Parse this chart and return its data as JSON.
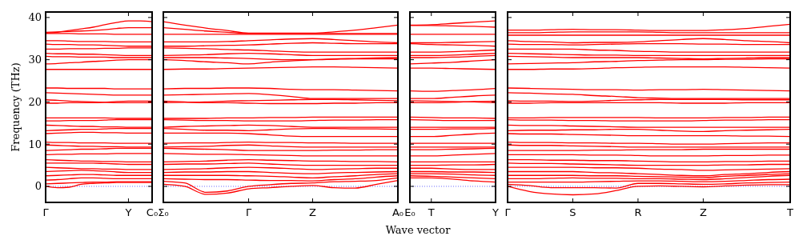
{
  "chart_data": [
    {
      "type": "line",
      "ylabel": "Frequency (THz)",
      "color": "#ff0000",
      "line_style": "solid",
      "marker": "none",
      "ylim": [
        -3.8,
        41.3
      ],
      "yticks": [
        0,
        10,
        20,
        30,
        40
      ],
      "categories": [
        "Γ",
        null,
        null,
        null,
        null,
        null,
        null,
        "Y",
        null,
        "C₀"
      ],
      "ref_lines": [
        {
          "axis": "y",
          "value": 0,
          "color": "#0000ff",
          "line_style": "dotted"
        }
      ],
      "series": [
        {
          "values": [
            36.3,
            36.5,
            36.9,
            37.3,
            37.7,
            38.3,
            38.8,
            39.2,
            39.2,
            39.0
          ]
        },
        {
          "values": [
            36.5,
            36.6,
            36.7,
            36.8,
            36.9,
            37.1,
            37.4,
            37.6,
            37.6,
            37.6
          ]
        },
        {
          "values": [
            36.2,
            36.2,
            36.2,
            36.1,
            36.1,
            36.1,
            36.0,
            36.0,
            36.0,
            36.0
          ]
        },
        {
          "values": [
            34.5,
            34.5,
            34.4,
            34.3,
            34.3,
            34.3,
            34.2,
            34.2,
            34.2,
            34.2
          ]
        },
        {
          "values": [
            33.7,
            33.6,
            33.6,
            33.5,
            33.5,
            33.4,
            33.3,
            33.2,
            33.2,
            33.2
          ]
        },
        {
          "values": [
            32.5,
            32.5,
            32.6,
            32.6,
            32.6,
            32.7,
            32.7,
            32.8,
            32.8,
            32.8
          ]
        },
        {
          "values": [
            31.5,
            31.4,
            31.4,
            31.3,
            31.3,
            31.2,
            31.1,
            31.0,
            31.0,
            31.0
          ]
        },
        {
          "values": [
            30.8,
            30.7,
            30.7,
            30.6,
            30.6,
            30.6,
            30.5,
            30.5,
            30.5,
            30.5
          ]
        },
        {
          "values": [
            29.0,
            29.1,
            29.3,
            29.4,
            29.6,
            29.7,
            29.9,
            30.0,
            30.0,
            30.0
          ]
        },
        {
          "values": [
            27.7,
            27.7,
            27.7,
            27.7,
            27.7,
            27.7,
            27.7,
            27.7,
            27.7,
            27.7
          ]
        },
        {
          "values": [
            23.3,
            23.3,
            23.2,
            23.2,
            23.2,
            23.2,
            23.1,
            23.1,
            23.1,
            23.1
          ]
        },
        {
          "values": [
            22.2,
            22.1,
            22.0,
            21.9,
            21.8,
            21.7,
            21.6,
            21.6,
            21.6,
            21.6
          ]
        },
        {
          "values": [
            20.5,
            20.4,
            20.2,
            20.1,
            20.0,
            19.9,
            19.8,
            19.8,
            19.8,
            19.8
          ]
        },
        {
          "values": [
            19.7,
            19.7,
            19.8,
            19.8,
            19.8,
            19.9,
            20.1,
            20.2,
            20.2,
            20.2
          ]
        },
        {
          "values": [
            16.2,
            16.2,
            16.2,
            16.2,
            16.2,
            16.2,
            16.1,
            16.1,
            16.1,
            16.1
          ]
        },
        {
          "values": [
            15.5,
            15.5,
            15.6,
            15.6,
            15.6,
            15.7,
            15.8,
            15.8,
            15.8,
            15.8
          ]
        },
        {
          "values": [
            14.5,
            14.4,
            14.3,
            14.2,
            14.2,
            14.1,
            14.1,
            14.0,
            14.0,
            14.0
          ]
        },
        {
          "values": [
            13.2,
            13.3,
            13.4,
            13.5,
            13.5,
            13.6,
            13.7,
            13.7,
            13.7,
            13.7
          ]
        },
        {
          "values": [
            12.5,
            12.6,
            12.7,
            12.8,
            12.8,
            12.7,
            12.7,
            12.6,
            12.6,
            12.6
          ]
        },
        {
          "values": [
            10.5,
            10.4,
            10.4,
            10.3,
            10.3,
            10.3,
            10.2,
            10.2,
            10.2,
            10.2
          ]
        },
        {
          "values": [
            9.8,
            9.7,
            9.6,
            9.5,
            9.5,
            9.4,
            9.4,
            9.3,
            9.3,
            9.3
          ]
        },
        {
          "values": [
            8.5,
            8.6,
            8.7,
            8.8,
            8.8,
            8.9,
            9.0,
            9.0,
            9.0,
            9.0
          ]
        },
        {
          "values": [
            7.5,
            7.6,
            7.6,
            7.7,
            7.7,
            7.7,
            7.8,
            7.8,
            7.8,
            7.8
          ]
        },
        {
          "values": [
            6.3,
            6.2,
            6.1,
            6.0,
            6.0,
            5.9,
            5.9,
            5.8,
            5.8,
            5.8
          ]
        },
        {
          "values": [
            5.5,
            5.5,
            5.5,
            5.5,
            5.5,
            5.4,
            5.3,
            5.2,
            5.2,
            5.2
          ]
        },
        {
          "values": [
            4.5,
            4.4,
            4.3,
            4.2,
            4.2,
            4.1,
            4.1,
            4.0,
            4.0,
            4.0
          ]
        },
        {
          "values": [
            3.5,
            3.6,
            3.7,
            3.8,
            3.7,
            3.6,
            3.4,
            3.3,
            3.3,
            3.3
          ]
        },
        {
          "values": [
            2.5,
            2.6,
            2.7,
            2.8,
            2.8,
            2.7,
            2.6,
            2.6,
            2.6,
            2.6
          ]
        },
        {
          "values": [
            1.5,
            1.6,
            1.8,
            2.0,
            2.0,
            1.9,
            1.8,
            1.8,
            1.8,
            1.8
          ]
        },
        {
          "values": [
            0.6,
            0.7,
            0.8,
            0.9,
            1.0,
            1.0,
            1.1,
            1.1,
            1.1,
            1.1
          ]
        },
        {
          "values": [
            0,
            -0.3,
            -0.2,
            0.5,
            0.7,
            0.8,
            0.9,
            0.9,
            0.9,
            0.9
          ]
        }
      ]
    },
    {
      "type": "line",
      "color": "#ff0000",
      "line_style": "solid",
      "marker": "none",
      "tick_labels": "x",
      "ylim": [
        -3.8,
        41.3
      ],
      "yticks": [
        0,
        10,
        20,
        30,
        40
      ],
      "categories": [
        "Σ₀",
        null,
        null,
        null,
        "Γ",
        null,
        null,
        "Z",
        null,
        null,
        null,
        "A₀"
      ],
      "ref_lines": [
        {
          "axis": "y",
          "value": 0,
          "color": "#0000ff",
          "line_style": "dotted"
        }
      ],
      "series": [
        {
          "values": [
            39.0,
            38.2,
            37.5,
            36.9,
            36.3,
            36.3,
            36.3,
            36.3,
            36.6,
            37.0,
            37.6,
            38.2
          ]
        },
        {
          "values": [
            37.6,
            37.2,
            36.8,
            36.5,
            36.2,
            36.2,
            36.2,
            36.2,
            36.2,
            36.2,
            36.2,
            36.2
          ]
        },
        {
          "values": [
            36.0,
            36.0,
            36.0,
            36.0,
            36.0,
            36.0,
            36.0,
            36.0,
            36.0,
            36.0,
            36.0,
            36.0
          ]
        },
        {
          "values": [
            34.2,
            34.2,
            34.2,
            34.3,
            34.5,
            34.7,
            34.9,
            35.0,
            34.8,
            34.5,
            34.2,
            34.0
          ]
        },
        {
          "values": [
            33.2,
            33.2,
            33.3,
            33.4,
            33.5,
            33.7,
            33.9,
            34.0,
            33.9,
            33.8,
            33.8,
            33.8
          ]
        },
        {
          "values": [
            32.8,
            32.7,
            32.6,
            32.4,
            32.3,
            32.1,
            31.9,
            31.8,
            31.8,
            31.8,
            31.8,
            31.8
          ]
        },
        {
          "values": [
            31.0,
            31.1,
            31.2,
            31.4,
            31.5,
            31.4,
            31.2,
            31.0,
            31.0,
            31.0,
            31.0,
            31.0
          ]
        },
        {
          "values": [
            30.5,
            30.5,
            30.5,
            30.4,
            30.3,
            30.1,
            30.0,
            30.0,
            30.1,
            30.2,
            30.2,
            30.2
          ]
        },
        {
          "values": [
            30.0,
            29.8,
            29.5,
            29.3,
            29.0,
            29.4,
            29.7,
            30.0,
            30.2,
            30.3,
            30.4,
            30.5
          ]
        },
        {
          "values": [
            27.7,
            27.8,
            27.8,
            27.9,
            28.0,
            28.1,
            28.2,
            28.3,
            28.3,
            28.2,
            28.1,
            28.0
          ]
        },
        {
          "values": [
            23.1,
            23.2,
            23.2,
            23.3,
            23.3,
            23.2,
            23.0,
            22.9,
            22.9,
            22.8,
            22.7,
            22.6
          ]
        },
        {
          "values": [
            21.6,
            21.7,
            21.8,
            21.9,
            22.0,
            21.7,
            21.3,
            20.8,
            20.8,
            20.8,
            20.8,
            20.8
          ]
        },
        {
          "values": [
            19.8,
            19.9,
            20.0,
            20.2,
            20.3,
            20.4,
            20.5,
            20.6,
            20.6,
            20.5,
            20.4,
            20.3
          ]
        },
        {
          "values": [
            20.2,
            20.0,
            19.8,
            19.8,
            19.7,
            19.6,
            19.6,
            19.6,
            19.7,
            19.7,
            19.8,
            19.8
          ]
        },
        {
          "values": [
            16.1,
            16.1,
            16.1,
            16.2,
            16.2,
            16.3,
            16.3,
            16.4,
            16.4,
            16.4,
            16.4,
            16.4
          ]
        },
        {
          "values": [
            15.8,
            15.7,
            15.6,
            15.6,
            15.5,
            15.5,
            15.5,
            15.6,
            15.7,
            15.7,
            15.8,
            15.8
          ]
        },
        {
          "values": [
            14.0,
            14.2,
            14.3,
            14.4,
            14.5,
            14.4,
            14.2,
            14.0,
            14.0,
            14.0,
            14.0,
            14.0
          ]
        },
        {
          "values": [
            13.7,
            13.5,
            13.3,
            13.3,
            13.2,
            13.4,
            13.6,
            13.7,
            13.7,
            13.6,
            13.6,
            13.5
          ]
        },
        {
          "values": [
            12.6,
            12.6,
            12.6,
            12.6,
            12.5,
            12.2,
            11.9,
            11.8,
            11.8,
            11.8,
            11.8,
            11.8
          ]
        },
        {
          "values": [
            10.2,
            10.3,
            10.3,
            10.4,
            10.5,
            10.4,
            10.4,
            10.3,
            10.3,
            10.2,
            10.2,
            10.2
          ]
        },
        {
          "values": [
            9.3,
            9.4,
            9.5,
            9.7,
            9.8,
            9.6,
            9.4,
            9.3,
            9.3,
            9.3,
            9.3,
            9.3
          ]
        },
        {
          "values": [
            9.0,
            8.9,
            8.8,
            8.7,
            8.5,
            8.5,
            8.5,
            8.5,
            8.6,
            8.6,
            8.7,
            8.7
          ]
        },
        {
          "values": [
            7.8,
            7.7,
            7.6,
            7.6,
            7.5,
            7.4,
            7.3,
            7.2,
            7.2,
            7.2,
            7.2,
            7.2
          ]
        },
        {
          "values": [
            5.8,
            5.9,
            6.0,
            6.2,
            6.3,
            6.2,
            6.1,
            6.0,
            6.0,
            5.9,
            5.9,
            5.8
          ]
        },
        {
          "values": [
            5.2,
            5.3,
            5.3,
            5.4,
            5.5,
            5.3,
            5.1,
            5.0,
            5.0,
            5.0,
            5.0,
            5.0
          ]
        },
        {
          "values": [
            4.0,
            4.1,
            4.2,
            4.4,
            4.5,
            4.4,
            4.2,
            4.0,
            4.1,
            4.2,
            4.3,
            4.3
          ]
        },
        {
          "values": [
            3.3,
            3.4,
            3.4,
            3.5,
            3.5,
            3.3,
            3.1,
            3.0,
            3.2,
            3.3,
            3.4,
            3.5
          ]
        },
        {
          "values": [
            2.6,
            2.6,
            2.6,
            2.6,
            2.5,
            2.4,
            2.2,
            2.0,
            2.3,
            2.5,
            2.8,
            3.0
          ]
        },
        {
          "values": [
            1.8,
            1.7,
            1.6,
            1.6,
            1.5,
            1.4,
            1.4,
            1.3,
            1.6,
            1.8,
            2.2,
            2.5
          ]
        },
        {
          "values": [
            1.2,
            0.8,
            -1.4,
            -1.1,
            0,
            0.4,
            0.7,
            0.8,
            1.1,
            1.2,
            1.4,
            2.0
          ]
        },
        {
          "values": [
            0.5,
            0.0,
            -1.9,
            -1.6,
            -0.6,
            -0.3,
            0,
            0.2,
            -0.3,
            -0.4,
            0.5,
            1.4
          ]
        }
      ]
    },
    {
      "type": "line",
      "xlabel": "Wave vector",
      "color": "#ff0000",
      "line_style": "solid",
      "marker": "none",
      "tick_labels": "x",
      "ylim": [
        -3.8,
        41.3
      ],
      "yticks": [
        0,
        10,
        20,
        30,
        40
      ],
      "categories": [
        "E₀",
        "T",
        null,
        null,
        "Y"
      ],
      "ref_lines": [
        {
          "axis": "y",
          "value": 0,
          "color": "#0000ff",
          "line_style": "dotted"
        }
      ],
      "series": [
        {
          "values": [
            38.2,
            38.3,
            38.6,
            38.9,
            39.2
          ]
        },
        {
          "values": [
            38.1,
            38.1,
            38.0,
            37.9,
            37.7
          ]
        },
        {
          "values": [
            36.0,
            36.0,
            36.0,
            36.0,
            36.0
          ]
        },
        {
          "values": [
            34.0,
            34.0,
            34.1,
            34.2,
            34.3
          ]
        },
        {
          "values": [
            33.8,
            33.6,
            33.5,
            33.4,
            33.2
          ]
        },
        {
          "values": [
            31.8,
            31.8,
            31.9,
            32.1,
            32.3
          ]
        },
        {
          "values": [
            31.0,
            31.0,
            31.1,
            31.3,
            31.5
          ]
        },
        {
          "values": [
            30.5,
            30.5,
            30.6,
            30.8,
            31.0
          ]
        },
        {
          "values": [
            29.0,
            29.2,
            29.4,
            29.7,
            30.0
          ]
        },
        {
          "values": [
            28.0,
            28.0,
            27.9,
            27.8,
            27.7
          ]
        },
        {
          "values": [
            22.6,
            22.5,
            22.7,
            22.9,
            23.2
          ]
        },
        {
          "values": [
            20.8,
            20.8,
            21.1,
            21.4,
            21.6
          ]
        },
        {
          "values": [
            20.3,
            20.2,
            20.1,
            20.0,
            19.8
          ]
        },
        {
          "values": [
            19.8,
            19.8,
            19.9,
            20.1,
            20.2
          ]
        },
        {
          "values": [
            16.4,
            16.3,
            16.2,
            16.2,
            16.1
          ]
        },
        {
          "values": [
            15.8,
            15.7,
            15.6,
            15.6,
            15.6
          ]
        },
        {
          "values": [
            14.0,
            14.0,
            14.0,
            14.0,
            14.0
          ]
        },
        {
          "values": [
            13.5,
            13.5,
            13.6,
            13.6,
            13.7
          ]
        },
        {
          "values": [
            11.8,
            11.8,
            12.1,
            12.4,
            12.6
          ]
        },
        {
          "values": [
            10.2,
            10.2,
            10.2,
            10.2,
            10.2
          ]
        },
        {
          "values": [
            9.3,
            9.3,
            9.3,
            9.3,
            9.3
          ]
        },
        {
          "values": [
            8.7,
            8.7,
            8.8,
            8.9,
            9.0
          ]
        },
        {
          "values": [
            7.2,
            7.2,
            7.4,
            7.6,
            7.8
          ]
        },
        {
          "values": [
            5.8,
            5.8,
            5.8,
            5.8,
            5.8
          ]
        },
        {
          "values": [
            5.0,
            5.0,
            5.1,
            5.1,
            5.2
          ]
        },
        {
          "values": [
            4.3,
            4.3,
            4.1,
            4.0,
            4.0
          ]
        },
        {
          "values": [
            3.5,
            3.5,
            3.4,
            3.4,
            3.3
          ]
        },
        {
          "values": [
            3.0,
            3.0,
            2.9,
            2.7,
            2.6
          ]
        },
        {
          "values": [
            2.5,
            2.4,
            2.2,
            2.0,
            1.8
          ]
        },
        {
          "values": [
            2.0,
            2.0,
            1.7,
            1.3,
            1.0
          ]
        }
      ]
    },
    {
      "type": "line",
      "color": "#ff0000",
      "line_style": "solid",
      "marker": "none",
      "tick_labels": "x",
      "ylim": [
        -3.8,
        41.3
      ],
      "yticks": [
        0,
        10,
        20,
        30,
        40
      ],
      "categories": [
        "Γ",
        null,
        null,
        "S",
        null,
        null,
        "R",
        null,
        null,
        "Z",
        null,
        null,
        null,
        "T"
      ],
      "ref_lines": [
        {
          "axis": "y",
          "value": 0,
          "color": "#0000ff",
          "line_style": "dotted"
        }
      ],
      "series": [
        {
          "values": [
            37.0,
            37.0,
            37.1,
            37.2,
            37.1,
            37.1,
            37.0,
            36.9,
            36.9,
            36.9,
            37.1,
            37.4,
            37.9,
            38.4
          ]
        },
        {
          "values": [
            36.4,
            36.4,
            36.5,
            36.6,
            36.6,
            36.6,
            36.6,
            36.5,
            36.4,
            36.4,
            36.4,
            36.4,
            36.4,
            36.4
          ]
        },
        {
          "values": [
            35.8,
            35.8,
            35.8,
            35.8,
            35.8,
            35.8,
            35.8,
            35.8,
            35.8,
            35.8,
            35.8,
            35.8,
            35.8,
            35.8
          ]
        },
        {
          "values": [
            34.5,
            34.3,
            34.2,
            34.0,
            34.1,
            34.1,
            34.2,
            34.5,
            34.8,
            35.0,
            34.8,
            34.5,
            34.3,
            34.0
          ]
        },
        {
          "values": [
            33.7,
            33.6,
            33.6,
            33.5,
            33.6,
            33.7,
            33.8,
            33.8,
            33.8,
            33.7,
            33.7,
            33.6,
            33.6,
            33.6
          ]
        },
        {
          "values": [
            32.5,
            32.5,
            32.5,
            32.5,
            32.3,
            32.2,
            32.0,
            31.9,
            31.8,
            31.8,
            31.8,
            31.8,
            31.8,
            31.8
          ]
        },
        {
          "values": [
            31.5,
            31.4,
            31.3,
            31.2,
            31.1,
            31.1,
            31.0,
            31.0,
            31.0,
            31.0,
            31.0,
            31.0,
            31.0,
            31.0
          ]
        },
        {
          "values": [
            30.8,
            30.7,
            30.6,
            30.5,
            30.5,
            30.5,
            30.5,
            30.4,
            30.3,
            30.2,
            30.3,
            30.4,
            30.5,
            30.5
          ]
        },
        {
          "values": [
            29.0,
            29.1,
            29.2,
            29.3,
            29.5,
            29.6,
            29.8,
            29.9,
            30.0,
            30.0,
            30.1,
            30.1,
            30.2,
            30.2
          ]
        },
        {
          "values": [
            27.7,
            27.7,
            27.8,
            27.8,
            27.9,
            28.1,
            28.2,
            28.3,
            28.3,
            28.3,
            28.3,
            28.2,
            28.1,
            28.0
          ]
        },
        {
          "values": [
            23.3,
            23.2,
            23.1,
            23.0,
            22.9,
            22.9,
            22.8,
            22.9,
            22.9,
            23.0,
            22.9,
            22.8,
            22.7,
            22.6
          ]
        },
        {
          "values": [
            22.2,
            22.1,
            21.9,
            21.8,
            21.5,
            21.3,
            21.0,
            20.9,
            20.8,
            20.8,
            20.8,
            20.8,
            20.8,
            20.8
          ]
        },
        {
          "values": [
            20.3,
            20.2,
            20.2,
            20.1,
            20.2,
            20.4,
            20.5,
            20.6,
            20.6,
            20.6,
            20.6,
            20.5,
            20.5,
            20.5
          ]
        },
        {
          "values": [
            19.7,
            19.7,
            19.8,
            19.8,
            19.8,
            19.8,
            19.8,
            19.8,
            19.7,
            19.7,
            19.7,
            19.8,
            19.8,
            19.8
          ]
        },
        {
          "values": [
            16.2,
            16.2,
            16.3,
            16.3,
            16.3,
            16.3,
            16.3,
            16.2,
            16.2,
            16.2,
            16.3,
            16.3,
            16.4,
            16.4
          ]
        },
        {
          "values": [
            15.8,
            15.7,
            15.7,
            15.6,
            15.6,
            15.5,
            15.5,
            15.5,
            15.5,
            15.6,
            15.7,
            15.7,
            15.8,
            15.8
          ]
        },
        {
          "values": [
            14.5,
            14.4,
            14.4,
            14.3,
            14.2,
            14.1,
            14.0,
            14.0,
            14.0,
            14.0,
            14.0,
            14.0,
            14.0,
            14.0
          ]
        },
        {
          "values": [
            13.2,
            13.3,
            13.3,
            13.4,
            13.4,
            13.5,
            13.5,
            13.3,
            13.1,
            13.0,
            13.2,
            13.3,
            13.4,
            13.5
          ]
        },
        {
          "values": [
            12.5,
            12.4,
            12.4,
            12.3,
            12.2,
            12.1,
            12.0,
            12.0,
            12.0,
            12.0,
            12.0,
            11.9,
            11.9,
            11.8
          ]
        },
        {
          "values": [
            10.5,
            10.4,
            10.4,
            10.3,
            10.3,
            10.2,
            10.2,
            10.1,
            10.0,
            10.0,
            10.1,
            10.2,
            10.3,
            10.3
          ]
        },
        {
          "values": [
            9.8,
            9.7,
            9.7,
            9.6,
            9.5,
            9.4,
            9.3,
            9.3,
            9.3,
            9.3,
            9.3,
            9.3,
            9.3,
            9.3
          ]
        },
        {
          "values": [
            8.5,
            8.5,
            8.5,
            8.5,
            8.6,
            8.6,
            8.7,
            8.7,
            8.7,
            8.8,
            8.8,
            8.8,
            8.8,
            8.8
          ]
        },
        {
          "values": [
            7.5,
            7.5,
            7.5,
            7.5,
            7.4,
            7.4,
            7.3,
            7.2,
            7.2,
            7.2,
            7.3,
            7.3,
            7.4,
            7.4
          ]
        },
        {
          "values": [
            6.3,
            6.3,
            6.2,
            6.2,
            6.1,
            6.1,
            6.0,
            5.9,
            5.8,
            5.8,
            5.9,
            5.9,
            6.0,
            6.0
          ]
        },
        {
          "values": [
            5.5,
            5.4,
            5.4,
            5.3,
            5.2,
            5.1,
            5.0,
            5.0,
            5.0,
            5.0,
            5.1,
            5.1,
            5.2,
            5.2
          ]
        },
        {
          "values": [
            4.5,
            4.5,
            4.5,
            4.5,
            4.4,
            4.4,
            4.3,
            4.1,
            4.0,
            3.8,
            3.9,
            4.0,
            4.1,
            4.2
          ]
        },
        {
          "values": [
            3.5,
            3.5,
            3.5,
            3.5,
            3.3,
            3.2,
            3.0,
            2.8,
            2.6,
            2.5,
            2.8,
            3.0,
            3.3,
            3.5
          ]
        },
        {
          "values": [
            2.6,
            2.6,
            2.6,
            2.6,
            2.5,
            2.5,
            2.4,
            2.3,
            2.2,
            2.1,
            2.4,
            2.6,
            2.8,
            3.0
          ]
        },
        {
          "values": [
            1.8,
            1.8,
            1.9,
            2.0,
            1.9,
            1.9,
            1.8,
            1.8,
            1.7,
            1.6,
            1.8,
            2.1,
            2.4,
            2.6
          ]
        },
        {
          "values": [
            1.0,
            1.0,
            1.0,
            1.0,
            1.1,
            1.2,
            1.3,
            1.3,
            1.2,
            1.1,
            1.2,
            1.4,
            1.6,
            1.7
          ]
        },
        {
          "values": [
            0.5,
            0.2,
            -0.3,
            -0.3,
            -0.3,
            -0.4,
            0.7,
            0.7,
            0.6,
            0.5,
            0.6,
            0.8,
            0.9,
            1.0
          ]
        },
        {
          "values": [
            0,
            -1.2,
            -1.8,
            -2.0,
            -1.8,
            -1.0,
            0.0,
            0.1,
            0.0,
            -0.1,
            0.1,
            0.3,
            0.4,
            0.4
          ]
        }
      ]
    }
  ]
}
